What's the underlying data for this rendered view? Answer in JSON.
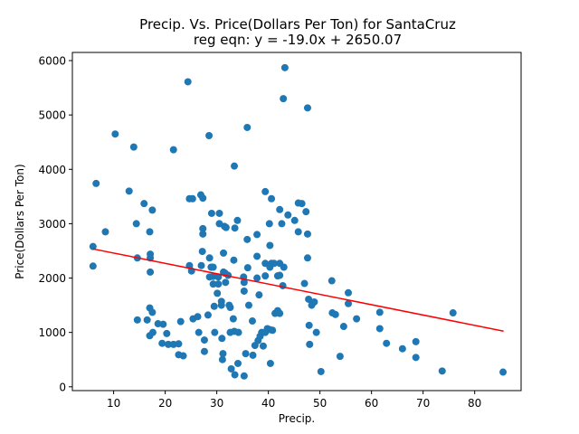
{
  "chart_data": {
    "type": "scatter",
    "title": "Precip. Vs. Price(Dollars Per Ton) for SantaCruz",
    "subtitle": "reg eqn: y = -19.0x + 2650.07",
    "xlabel": "Precip.",
    "ylabel": "Price(Dollars Per Ton)",
    "xlim": [
      2.0,
      89.0
    ],
    "ylim": [
      -70,
      6150
    ],
    "xticks": [
      10,
      20,
      30,
      40,
      50,
      60,
      70,
      80
    ],
    "yticks": [
      0,
      1000,
      2000,
      3000,
      4000,
      5000,
      6000
    ],
    "grid": false,
    "point_color": "#1f77b4",
    "line_color": "#ff0000",
    "regression": {
      "slope": -19.0,
      "intercept": 2650.07,
      "x_range": [
        6.0,
        85.6
      ]
    },
    "points": [
      [
        6.0,
        2580
      ],
      [
        6.0,
        2220
      ],
      [
        6.6,
        3740
      ],
      [
        8.4,
        2850
      ],
      [
        10.3,
        4650
      ],
      [
        13.0,
        3600
      ],
      [
        13.9,
        4410
      ],
      [
        14.4,
        3000
      ],
      [
        14.6,
        2370
      ],
      [
        14.6,
        1230
      ],
      [
        15.9,
        3370
      ],
      [
        16.5,
        1230
      ],
      [
        17.0,
        2850
      ],
      [
        17.1,
        2440
      ],
      [
        17.1,
        2370
      ],
      [
        17.1,
        2110
      ],
      [
        17.0,
        1450
      ],
      [
        17.0,
        940
      ],
      [
        17.5,
        3250
      ],
      [
        17.5,
        1370
      ],
      [
        17.6,
        1000
      ],
      [
        18.6,
        1160
      ],
      [
        19.4,
        800
      ],
      [
        19.6,
        1150
      ],
      [
        20.3,
        980
      ],
      [
        20.6,
        780
      ],
      [
        21.6,
        4360
      ],
      [
        21.6,
        780
      ],
      [
        22.6,
        790
      ],
      [
        22.6,
        590
      ],
      [
        23.0,
        1200
      ],
      [
        23.5,
        570
      ],
      [
        24.4,
        5610
      ],
      [
        24.7,
        2230
      ],
      [
        24.7,
        3460
      ],
      [
        25.3,
        3460
      ],
      [
        25.1,
        2130
      ],
      [
        25.4,
        1250
      ],
      [
        26.3,
        1290
      ],
      [
        26.5,
        1000
      ],
      [
        26.9,
        3530
      ],
      [
        27.3,
        3470
      ],
      [
        27.3,
        2910
      ],
      [
        27.3,
        2810
      ],
      [
        27.2,
        2490
      ],
      [
        27.0,
        2230
      ],
      [
        27.6,
        860
      ],
      [
        27.6,
        650
      ],
      [
        28.3,
        1320
      ],
      [
        28.5,
        4620
      ],
      [
        28.6,
        2370
      ],
      [
        28.9,
        2200
      ],
      [
        28.6,
        2020
      ],
      [
        29.0,
        3190
      ],
      [
        29.3,
        2200
      ],
      [
        29.3,
        2030
      ],
      [
        29.3,
        1890
      ],
      [
        29.5,
        1480
      ],
      [
        29.6,
        1000
      ],
      [
        30.1,
        1720
      ],
      [
        30.5,
        3190
      ],
      [
        30.5,
        3000
      ],
      [
        30.3,
        2020
      ],
      [
        30.3,
        1890
      ],
      [
        30.9,
        1570
      ],
      [
        30.9,
        1500
      ],
      [
        31.0,
        890
      ],
      [
        31.2,
        610
      ],
      [
        31.1,
        500
      ],
      [
        31.3,
        2460
      ],
      [
        31.3,
        2110
      ],
      [
        31.5,
        2950
      ],
      [
        31.6,
        2090
      ],
      [
        31.7,
        1920
      ],
      [
        31.8,
        2930
      ],
      [
        32.2,
        2050
      ],
      [
        32.4,
        1500
      ],
      [
        32.6,
        1460
      ],
      [
        32.6,
        1000
      ],
      [
        32.8,
        330
      ],
      [
        33.2,
        1250
      ],
      [
        33.4,
        4060
      ],
      [
        33.5,
        2920
      ],
      [
        33.3,
        2330
      ],
      [
        33.4,
        1020
      ],
      [
        33.5,
        220
      ],
      [
        34.0,
        3060
      ],
      [
        34.1,
        430
      ],
      [
        34.2,
        1000
      ],
      [
        35.2,
        2020
      ],
      [
        35.3,
        1920
      ],
      [
        35.3,
        1760
      ],
      [
        35.3,
        200
      ],
      [
        35.6,
        610
      ],
      [
        35.9,
        4770
      ],
      [
        35.9,
        2710
      ],
      [
        36.0,
        2190
      ],
      [
        36.2,
        1500
      ],
      [
        36.9,
        1210
      ],
      [
        37.0,
        580
      ],
      [
        37.4,
        760
      ],
      [
        37.8,
        2800
      ],
      [
        37.8,
        2000
      ],
      [
        37.8,
        2400
      ],
      [
        38.2,
        1690
      ],
      [
        38.0,
        850
      ],
      [
        38.4,
        930
      ],
      [
        38.7,
        1000
      ],
      [
        39.0,
        750
      ],
      [
        39.4,
        3590
      ],
      [
        39.4,
        2270
      ],
      [
        39.4,
        2040
      ],
      [
        39.4,
        1000
      ],
      [
        39.8,
        1070
      ],
      [
        40.2,
        3000
      ],
      [
        40.3,
        2600
      ],
      [
        40.3,
        2200
      ],
      [
        40.3,
        1050
      ],
      [
        40.4,
        430
      ],
      [
        40.6,
        3460
      ],
      [
        40.6,
        2270
      ],
      [
        40.8,
        1040
      ],
      [
        41.1,
        2270
      ],
      [
        41.3,
        1350
      ],
      [
        41.8,
        2040
      ],
      [
        41.8,
        1400
      ],
      [
        42.2,
        3260
      ],
      [
        42.2,
        2270
      ],
      [
        42.2,
        2050
      ],
      [
        42.2,
        1350
      ],
      [
        42.6,
        3000
      ],
      [
        42.8,
        1860
      ],
      [
        42.9,
        5300
      ],
      [
        43.0,
        2200
      ],
      [
        43.2,
        5870
      ],
      [
        43.8,
        3160
      ],
      [
        45.1,
        3060
      ],
      [
        45.8,
        3380
      ],
      [
        45.8,
        2850
      ],
      [
        46.5,
        3370
      ],
      [
        47.0,
        1900
      ],
      [
        47.3,
        3220
      ],
      [
        47.6,
        2810
      ],
      [
        47.6,
        2370
      ],
      [
        47.6,
        5130
      ],
      [
        47.8,
        1610
      ],
      [
        47.9,
        1130
      ],
      [
        48.0,
        780
      ],
      [
        48.4,
        1500
      ],
      [
        48.9,
        1560
      ],
      [
        49.3,
        1000
      ],
      [
        50.2,
        280
      ],
      [
        52.3,
        1950
      ],
      [
        52.4,
        1360
      ],
      [
        53.0,
        1330
      ],
      [
        53.9,
        560
      ],
      [
        54.6,
        1110
      ],
      [
        55.5,
        1730
      ],
      [
        55.5,
        1530
      ],
      [
        57.1,
        1250
      ],
      [
        61.6,
        1370
      ],
      [
        61.6,
        1070
      ],
      [
        62.9,
        800
      ],
      [
        66.0,
        700
      ],
      [
        68.6,
        540
      ],
      [
        68.6,
        830
      ],
      [
        73.7,
        290
      ],
      [
        75.8,
        1360
      ],
      [
        85.5,
        270
      ]
    ]
  }
}
